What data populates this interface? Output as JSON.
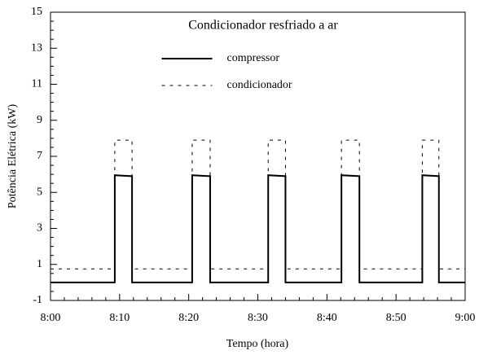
{
  "chart_data": {
    "type": "line",
    "title": "Condicionador resfriado a ar",
    "xlabel": "Tempo (hora)",
    "ylabel": "Potência Elétrica (kW)",
    "xlim": [
      0,
      60
    ],
    "xticks": [
      {
        "value": 0,
        "label": "8:00"
      },
      {
        "value": 10,
        "label": "8:10"
      },
      {
        "value": 20,
        "label": "8:20"
      },
      {
        "value": 30,
        "label": "8:30"
      },
      {
        "value": 40,
        "label": "8:40"
      },
      {
        "value": 50,
        "label": "8:50"
      },
      {
        "value": 60,
        "label": "9:00"
      }
    ],
    "xminorticks": [
      2,
      4,
      6,
      8,
      12,
      14,
      16,
      18,
      22,
      24,
      26,
      28,
      32,
      34,
      36,
      38,
      42,
      44,
      46,
      48,
      52,
      54,
      56,
      58
    ],
    "ylim": [
      -1,
      15
    ],
    "yticks": [
      -1,
      1,
      3,
      5,
      7,
      9,
      11,
      13,
      15
    ],
    "yminorticks": [
      -0.5,
      0,
      0.5,
      1.5,
      2,
      2.5,
      3.5,
      4,
      4.5,
      5.5,
      6,
      6.5,
      7.5,
      8,
      8.5,
      9.5,
      10,
      10.5,
      11.5,
      12,
      12.5,
      13.5,
      14,
      14.5
    ],
    "legend": "upper center",
    "series": [
      {
        "name": "compressor",
        "color": "#000000",
        "dash": false,
        "x": [
          0,
          9.3,
          9.3,
          11.8,
          11.8,
          20.5,
          20.5,
          23.1,
          23.1,
          31.5,
          31.5,
          34,
          34,
          42.1,
          42.1,
          44.7,
          44.7,
          53.8,
          53.8,
          56.2,
          56.2,
          60
        ],
        "values": [
          0,
          0,
          5.95,
          5.9,
          0,
          0,
          5.95,
          5.9,
          0,
          0,
          5.95,
          5.9,
          0,
          0,
          5.95,
          5.9,
          0,
          0,
          5.95,
          5.9,
          0,
          0
        ]
      },
      {
        "name": "condicionador",
        "color": "#000000",
        "dash": true,
        "x": [
          0,
          9.3,
          9.3,
          11.8,
          11.8,
          20.5,
          20.5,
          23.1,
          23.1,
          31.5,
          31.5,
          34,
          34,
          42.1,
          42.1,
          44.7,
          44.7,
          53.8,
          53.8,
          56.2,
          56.2,
          60
        ],
        "values": [
          0.75,
          0.75,
          7.9,
          7.9,
          0.75,
          0.75,
          7.9,
          7.9,
          0.75,
          0.75,
          7.9,
          7.9,
          0.75,
          0.75,
          7.9,
          7.9,
          0.75,
          0.75,
          7.9,
          7.9,
          0.75,
          0.75
        ]
      }
    ]
  }
}
